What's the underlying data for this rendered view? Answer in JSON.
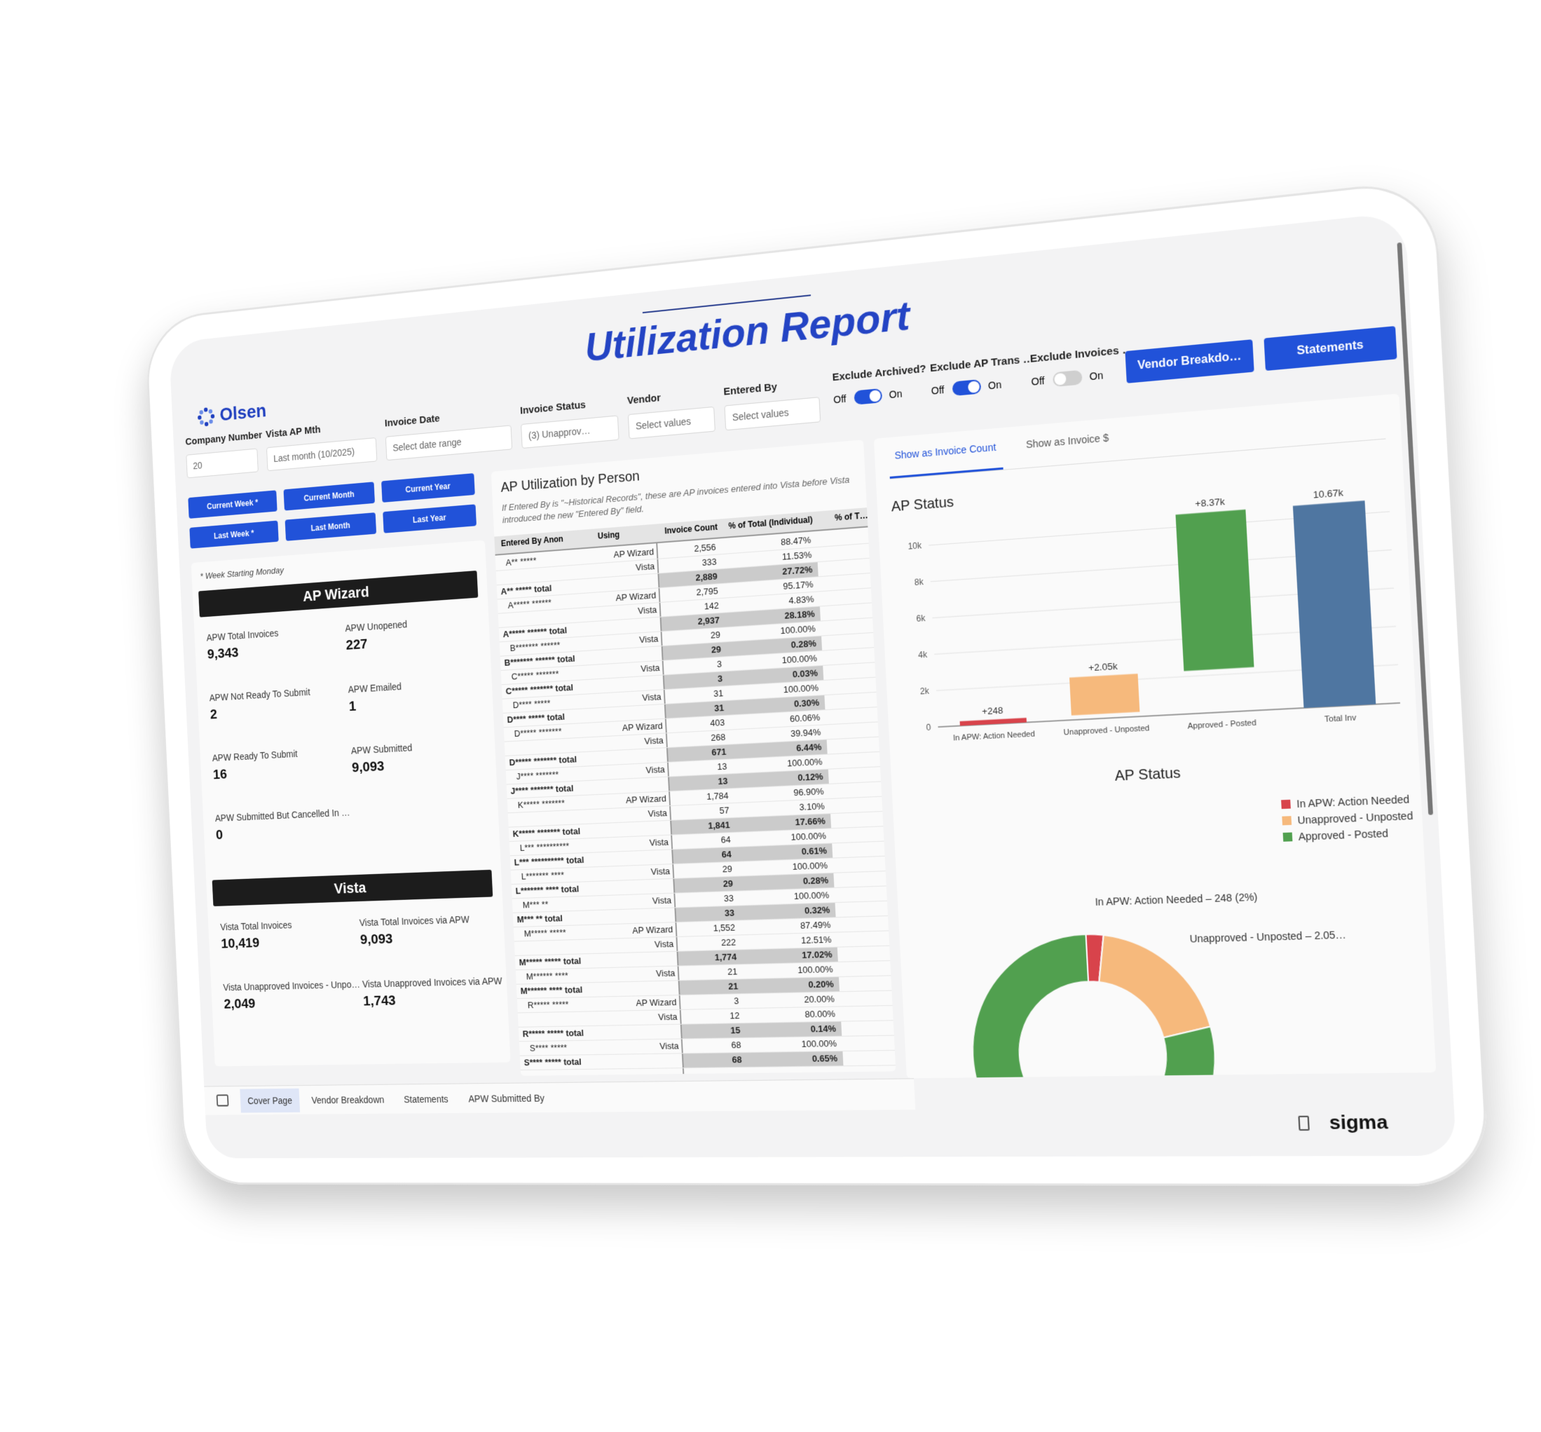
{
  "header": {
    "logo": "Olsen",
    "title": "Utilization Report"
  },
  "filters": [
    {
      "label": "Company Number",
      "value": "20"
    },
    {
      "label": "Vista AP Mth",
      "value": "Last month (10/2025)"
    },
    {
      "label": "Invoice Date",
      "value": "Select date range"
    },
    {
      "label": "Invoice Status",
      "value": "(3) Unapprov…"
    },
    {
      "label": "Vendor",
      "value": "Select values"
    },
    {
      "label": "Entered By",
      "value": "Select values"
    }
  ],
  "toggles": [
    {
      "label": "Exclude Archived?",
      "off": "Off",
      "on": "On",
      "state": "on"
    },
    {
      "label": "Exclude AP Trans …",
      "off": "Off",
      "on": "On",
      "state": "on"
    },
    {
      "label": "Exclude Invoices …",
      "off": "Off",
      "on": "On",
      "state": "off"
    }
  ],
  "nav_buttons": [
    "Vendor Breakdo…",
    "Statements"
  ],
  "period_buttons": [
    "Current Week *",
    "Current Month",
    "Current Year",
    "Last Week *",
    "Last Month",
    "Last Year"
  ],
  "kpi_panel": {
    "note": "* Week Starting Monday",
    "sections": [
      {
        "title": "AP Wizard",
        "metrics": [
          {
            "label": "APW Total Invoices",
            "value": "9,343"
          },
          {
            "label": "APW Unopened",
            "value": "227"
          },
          {
            "label": "APW Not Ready To Submit",
            "value": "2"
          },
          {
            "label": "APW Emailed",
            "value": "1"
          },
          {
            "label": "APW Ready To Submit",
            "value": "16"
          },
          {
            "label": "APW Submitted",
            "value": "9,093"
          },
          {
            "label": "APW Submitted But Cancelled In …",
            "value": "0"
          }
        ]
      },
      {
        "title": "Vista",
        "metrics": [
          {
            "label": "Vista Total Invoices",
            "value": "10,419"
          },
          {
            "label": "Vista Total Invoices via APW",
            "value": "9,093"
          },
          {
            "label": "Vista Unapproved Invoices - Unpo…",
            "value": "2,049"
          },
          {
            "label": "Vista Unapproved Invoices via APW",
            "value": "1,743"
          }
        ]
      }
    ]
  },
  "utilization_table": {
    "title": "AP Utilization by Person",
    "subtitle": "If Entered By is \"~Historical Records\", these are AP invoices entered into Vista before Vista introduced the new \"Entered By\" field.",
    "columns": [
      "Entered By Anon",
      "Using",
      "Invoice Count",
      "% of Total (Individual)",
      "% of T…"
    ],
    "rows": [
      {
        "name": "A** *****",
        "using": "AP Wizard",
        "count": "2,556",
        "share": "88.47%",
        "total": false
      },
      {
        "name": null,
        "using": "Vista",
        "count": "333",
        "share": "11.53%",
        "total": false
      },
      {
        "name": "A** ***** total",
        "using": null,
        "count": "2,889",
        "share": "27.72%",
        "total": true
      },
      {
        "name": "A***** ******",
        "using": "AP Wizard",
        "count": "2,795",
        "share": "95.17%",
        "total": false
      },
      {
        "name": null,
        "using": "Vista",
        "count": "142",
        "share": "4.83%",
        "total": false
      },
      {
        "name": "A***** ****** total",
        "using": null,
        "count": "2,937",
        "share": "28.18%",
        "total": true
      },
      {
        "name": "B******* ******",
        "using": "Vista",
        "count": "29",
        "share": "100.00%",
        "total": false
      },
      {
        "name": "B******* ****** total",
        "using": null,
        "count": "29",
        "share": "0.28%",
        "total": true
      },
      {
        "name": "C***** *******",
        "using": "Vista",
        "count": "3",
        "share": "100.00%",
        "total": false
      },
      {
        "name": "C***** ******* total",
        "using": null,
        "count": "3",
        "share": "0.03%",
        "total": true
      },
      {
        "name": "D**** *****",
        "using": "Vista",
        "count": "31",
        "share": "100.00%",
        "total": false
      },
      {
        "name": "D**** ***** total",
        "using": null,
        "count": "31",
        "share": "0.30%",
        "total": true
      },
      {
        "name": "D***** *******",
        "using": "AP Wizard",
        "count": "403",
        "share": "60.06%",
        "total": false
      },
      {
        "name": null,
        "using": "Vista",
        "count": "268",
        "share": "39.94%",
        "total": false
      },
      {
        "name": "D***** ******* total",
        "using": null,
        "count": "671",
        "share": "6.44%",
        "total": true
      },
      {
        "name": "J**** *******",
        "using": "Vista",
        "count": "13",
        "share": "100.00%",
        "total": false
      },
      {
        "name": "J**** ******* total",
        "using": null,
        "count": "13",
        "share": "0.12%",
        "total": true
      },
      {
        "name": "K***** *******",
        "using": "AP Wizard",
        "count": "1,784",
        "share": "96.90%",
        "total": false
      },
      {
        "name": null,
        "using": "Vista",
        "count": "57",
        "share": "3.10%",
        "total": false
      },
      {
        "name": "K***** ******* total",
        "using": null,
        "count": "1,841",
        "share": "17.66%",
        "total": true
      },
      {
        "name": "L*** **********",
        "using": "Vista",
        "count": "64",
        "share": "100.00%",
        "total": false
      },
      {
        "name": "L*** ********** total",
        "using": null,
        "count": "64",
        "share": "0.61%",
        "total": true
      },
      {
        "name": "L******* ****",
        "using": "Vista",
        "count": "29",
        "share": "100.00%",
        "total": false
      },
      {
        "name": "L******* **** total",
        "using": null,
        "count": "29",
        "share": "0.28%",
        "total": true
      },
      {
        "name": "M*** **",
        "using": "Vista",
        "count": "33",
        "share": "100.00%",
        "total": false
      },
      {
        "name": "M*** ** total",
        "using": null,
        "count": "33",
        "share": "0.32%",
        "total": true
      },
      {
        "name": "M***** *****",
        "using": "AP Wizard",
        "count": "1,552",
        "share": "87.49%",
        "total": false
      },
      {
        "name": null,
        "using": "Vista",
        "count": "222",
        "share": "12.51%",
        "total": false
      },
      {
        "name": "M***** ***** total",
        "using": null,
        "count": "1,774",
        "share": "17.02%",
        "total": true
      },
      {
        "name": "M****** ****",
        "using": "Vista",
        "count": "21",
        "share": "100.00%",
        "total": false
      },
      {
        "name": "M****** **** total",
        "using": null,
        "count": "21",
        "share": "0.20%",
        "total": true
      },
      {
        "name": "R***** *****",
        "using": "AP Wizard",
        "count": "3",
        "share": "20.00%",
        "total": false
      },
      {
        "name": null,
        "using": "Vista",
        "count": "12",
        "share": "80.00%",
        "total": false
      },
      {
        "name": "R***** ***** total",
        "using": null,
        "count": "15",
        "share": "0.14%",
        "total": true
      },
      {
        "name": "S**** *****",
        "using": "Vista",
        "count": "68",
        "share": "100.00%",
        "total": false
      },
      {
        "name": "S**** ***** total",
        "using": null,
        "count": "68",
        "share": "0.65%",
        "total": true
      }
    ]
  },
  "view_tabs": {
    "items": [
      "Show as Invoice Count",
      "Show as Invoice $"
    ],
    "active": 0
  },
  "status_waterfall": {
    "type": "waterfall",
    "title": "AP Status",
    "categories": [
      "In APW: Action Needed",
      "Unapproved - Unposted",
      "Approved - Posted",
      "Total Inv"
    ],
    "values": [
      248,
      2050,
      8370,
      10670
    ],
    "value_labels": [
      "+248",
      "+2.05k",
      "+8.37k",
      "10.67k"
    ],
    "measures": [
      "relative",
      "relative",
      "relative",
      "total"
    ],
    "colors": [
      "#d8434b",
      "#f6b97c",
      "#51a04f",
      "#4f76a1"
    ],
    "ylim": [
      0,
      11000
    ],
    "yticks": [
      0,
      {
        "value": 2000,
        "label": "2k"
      },
      {
        "value": 4000,
        "label": "4k"
      },
      {
        "value": 6000,
        "label": "6k"
      },
      {
        "value": 8000,
        "label": "8k"
      },
      {
        "value": 10000,
        "label": "10k"
      }
    ],
    "grid": true
  },
  "status_donut": {
    "type": "donut",
    "title": "AP Status",
    "categories": [
      "In APW: Action Needed",
      "Unapproved - Unposted",
      "Approved - Posted"
    ],
    "values": [
      248,
      2050,
      8370
    ],
    "value_labels": [
      "In APW: Action Needed – 248 (2%)",
      "Unapproved - Unposted – 2.05…",
      null
    ],
    "colors": [
      "#d8434b",
      "#f6b97c",
      "#51a04f"
    ],
    "legend": "top-right"
  },
  "page_tabs": {
    "items": [
      "Cover Page",
      "Vendor Breakdown",
      "Statements",
      "APW Submitted By"
    ],
    "active": 0
  },
  "footer": {
    "brand": "sigma"
  }
}
